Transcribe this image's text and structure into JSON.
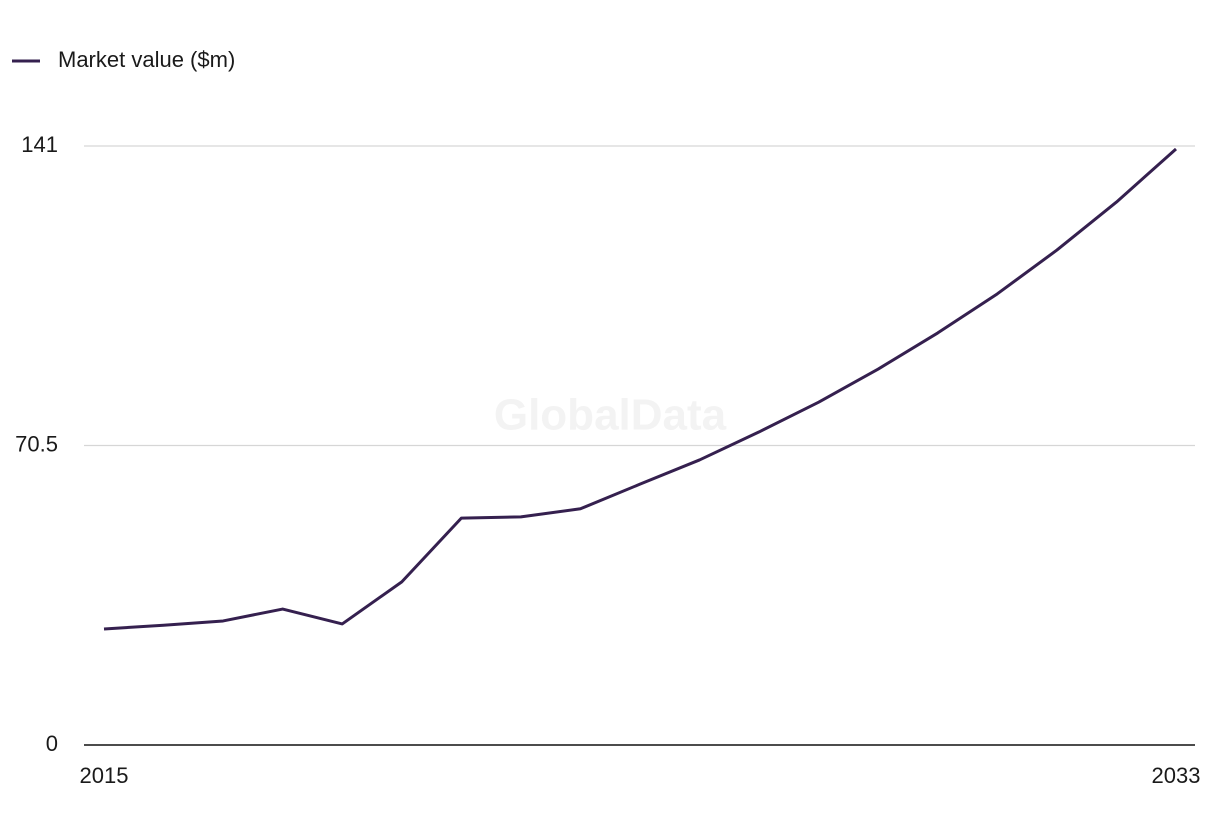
{
  "chart_data": {
    "type": "line",
    "watermark": "GlobalData",
    "x": [
      2015,
      2016,
      2017,
      2018,
      2019,
      2020,
      2021,
      2022,
      2023,
      2024,
      2025,
      2026,
      2027,
      2028,
      2029,
      2030,
      2031,
      2032,
      2033
    ],
    "series": [
      {
        "name": "Market value ($m)",
        "color": "#35204f",
        "values": [
          27.3,
          28.2,
          29.2,
          32.0,
          28.5,
          38.4,
          53.4,
          53.7,
          55.6,
          61.4,
          67.1,
          73.7,
          80.7,
          88.5,
          97.0,
          106.2,
          116.5,
          127.8,
          140.3
        ]
      }
    ],
    "xlim": [
      2015,
      2033
    ],
    "xticks": [
      2015,
      2033
    ],
    "ylim": [
      0,
      141
    ],
    "yticks": [
      0,
      70.5,
      141
    ],
    "grid": true,
    "legend": "top-left"
  }
}
